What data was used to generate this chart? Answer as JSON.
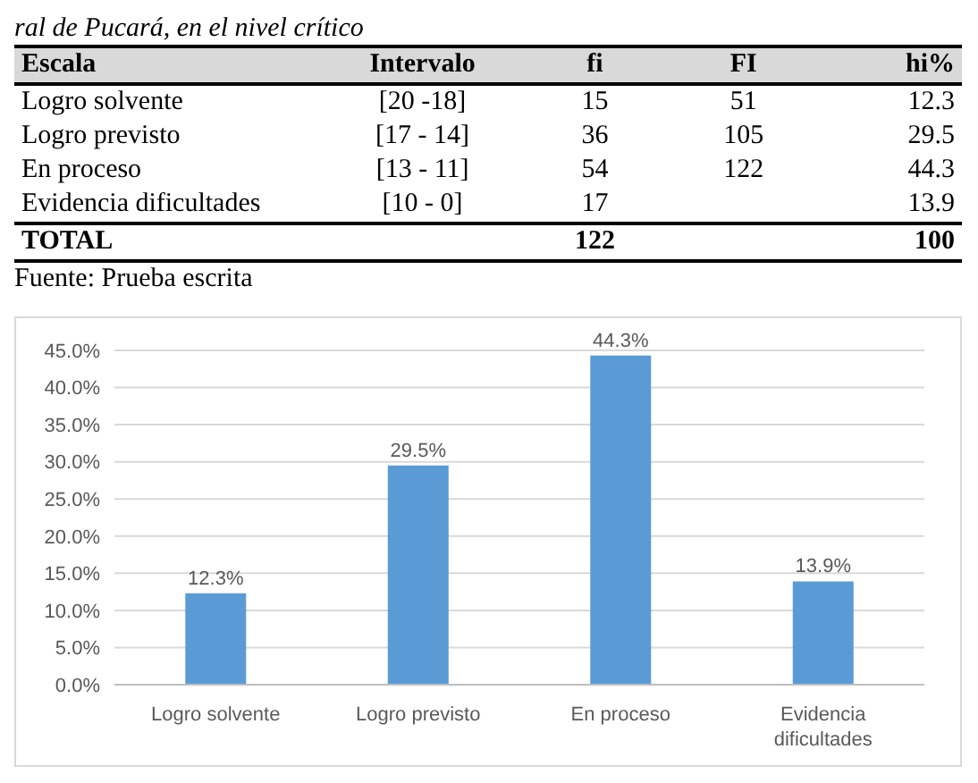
{
  "chart_data": [
    {
      "type": "other",
      "title": "ral de Pucará, en el nivel crítico",
      "annotations": [
        "Escala",
        "Intervalo",
        "fi",
        "FI",
        "hi%",
        "Logro solvente",
        "[20 -18]",
        "15",
        "51",
        "12.3",
        "Logro previsto",
        "[17 - 14]",
        "36",
        "105",
        "29.5",
        "En proceso",
        "[13 - 11]",
        "54",
        "122",
        "44.3",
        "Evidencia dificultades",
        "[10 - 0]",
        "17",
        null,
        "13.9",
        "TOTAL",
        null,
        "122",
        null,
        "100",
        "Fuente: Prueba escrita"
      ]
    },
    {
      "type": "bar",
      "categories": [
        "Logro solvente",
        "Logro previsto",
        "En proceso",
        "Evidencia dificultades"
      ],
      "values": [
        12.3,
        29.5,
        44.3,
        13.9
      ],
      "color": "#5b9bd5",
      "ylim": [
        0,
        45
      ],
      "yticks": [
        {
          "value": 0,
          "label": "0.0%"
        },
        {
          "value": 5,
          "label": "5.0%"
        },
        {
          "value": 10,
          "label": "10.0%"
        },
        {
          "value": 15,
          "label": "15.0%"
        },
        {
          "value": 20,
          "label": "20.0%"
        },
        {
          "value": 25,
          "label": "25.0%"
        },
        {
          "value": 30,
          "label": "30.0%"
        },
        {
          "value": 35,
          "label": "35.0%"
        },
        {
          "value": 40,
          "label": "40.0%"
        },
        {
          "value": 45,
          "label": "45.0%"
        }
      ],
      "grid": "y",
      "value_labels": [
        "12.3%",
        "29.5%",
        "44.3%",
        "13.9%"
      ]
    }
  ]
}
